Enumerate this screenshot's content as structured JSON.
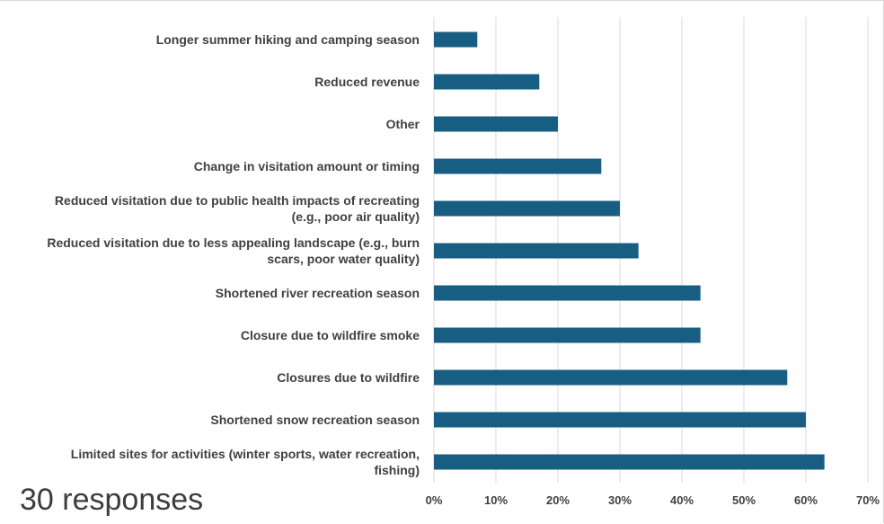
{
  "note": "30 responses",
  "chart_data": {
    "type": "bar",
    "orientation": "horizontal",
    "categories": [
      [
        "Longer summer hiking and camping season"
      ],
      [
        "Reduced revenue"
      ],
      [
        "Other"
      ],
      [
        "Change in visitation amount or timing"
      ],
      [
        "Reduced visitation due to public health impacts of recreating",
        "(e.g., poor air quality)"
      ],
      [
        "Reduced visitation due to less appealing landscape (e.g., burn",
        "scars, poor water quality)"
      ],
      [
        "Shortened river recreation season"
      ],
      [
        "Closure due to wildfire smoke"
      ],
      [
        "Closures due to wildfire"
      ],
      [
        "Shortened snow recreation season"
      ],
      [
        "Limited sites for activities (winter sports, water recreation,",
        "fishing)"
      ]
    ],
    "values": [
      7,
      17,
      20,
      27,
      30,
      33,
      43,
      43,
      57,
      60,
      63
    ],
    "xlim": [
      0,
      70
    ],
    "xticks": [
      0,
      10,
      20,
      30,
      40,
      50,
      60,
      70
    ],
    "xtick_labels": [
      "0%",
      "10%",
      "20%",
      "30%",
      "40%",
      "50%",
      "60%",
      "70%"
    ],
    "bar_color": "#175e82",
    "grid": true,
    "legend": "none",
    "title": "",
    "xlabel": "",
    "ylabel": ""
  }
}
